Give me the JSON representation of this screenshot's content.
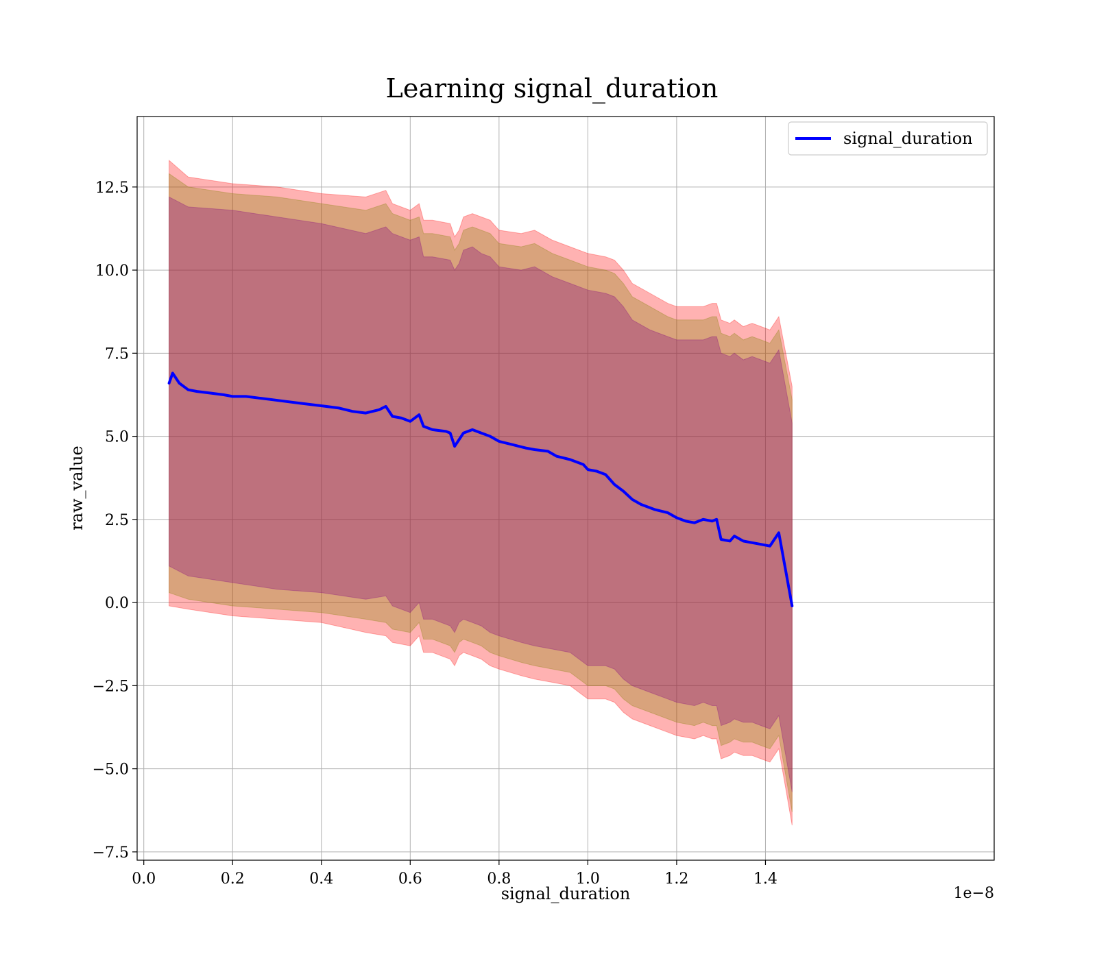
{
  "chart_data": {
    "type": "line",
    "title": "Learning signal_duration",
    "xlabel": "signal_duration",
    "ylabel": "raw_value",
    "x_offset_label": "1e−8",
    "xlim": [
      -0.015,
      1.915
    ],
    "ylim": [
      -7.75,
      14.62
    ],
    "x_ticks": [
      0.0,
      0.2,
      0.4,
      0.6,
      0.8,
      1.0,
      1.2,
      1.4
    ],
    "x_tick_labels": [
      "0.0",
      "0.2",
      "0.4",
      "0.6",
      "0.8",
      "1.0",
      "1.2",
      "1.4"
    ],
    "y_ticks": [
      -7.5,
      -5.0,
      -2.5,
      0.0,
      2.5,
      5.0,
      7.5,
      10.0,
      12.5
    ],
    "y_tick_labels": [
      "−7.5",
      "−5.0",
      "−2.5",
      "0.0",
      "2.5",
      "5.0",
      "7.5",
      "10.0",
      "12.5"
    ],
    "grid": true,
    "legend": {
      "position": "upper right",
      "entries": [
        "signal_duration"
      ]
    },
    "series": [
      {
        "name": "signal_duration",
        "color": "#0000ff",
        "x": [
          0.057,
          0.065,
          0.08,
          0.1,
          0.12,
          0.15,
          0.18,
          0.2,
          0.23,
          0.26,
          0.29,
          0.32,
          0.35,
          0.38,
          0.41,
          0.44,
          0.47,
          0.5,
          0.53,
          0.545,
          0.56,
          0.58,
          0.6,
          0.62,
          0.63,
          0.65,
          0.68,
          0.69,
          0.7,
          0.71,
          0.72,
          0.74,
          0.76,
          0.78,
          0.8,
          0.83,
          0.86,
          0.88,
          0.91,
          0.93,
          0.96,
          0.99,
          1.0,
          1.02,
          1.04,
          1.06,
          1.08,
          1.1,
          1.12,
          1.15,
          1.18,
          1.2,
          1.22,
          1.24,
          1.26,
          1.28,
          1.29,
          1.3,
          1.32,
          1.33,
          1.35,
          1.37,
          1.39,
          1.41,
          1.43,
          1.46
        ],
        "y": [
          6.6,
          6.9,
          6.6,
          6.4,
          6.35,
          6.3,
          6.25,
          6.2,
          6.2,
          6.15,
          6.1,
          6.05,
          6.0,
          5.95,
          5.9,
          5.85,
          5.75,
          5.7,
          5.8,
          5.9,
          5.6,
          5.55,
          5.45,
          5.65,
          5.3,
          5.2,
          5.15,
          5.1,
          4.7,
          4.9,
          5.1,
          5.2,
          5.1,
          5.0,
          4.85,
          4.75,
          4.65,
          4.6,
          4.55,
          4.4,
          4.3,
          4.15,
          4.0,
          3.95,
          3.85,
          3.55,
          3.35,
          3.1,
          2.95,
          2.8,
          2.7,
          2.55,
          2.45,
          2.4,
          2.5,
          2.45,
          2.5,
          1.9,
          1.85,
          2.0,
          1.85,
          1.8,
          1.75,
          1.7,
          2.1,
          -0.1
        ]
      }
    ],
    "bands": [
      {
        "color": "#ff0000",
        "opacity": 0.3,
        "x": [
          0.057,
          0.1,
          0.2,
          0.3,
          0.4,
          0.5,
          0.545,
          0.56,
          0.6,
          0.62,
          0.63,
          0.65,
          0.69,
          0.7,
          0.71,
          0.72,
          0.74,
          0.76,
          0.78,
          0.8,
          0.85,
          0.88,
          0.92,
          0.96,
          1.0,
          1.04,
          1.06,
          1.08,
          1.1,
          1.14,
          1.18,
          1.2,
          1.24,
          1.26,
          1.28,
          1.29,
          1.3,
          1.32,
          1.33,
          1.35,
          1.37,
          1.39,
          1.41,
          1.43,
          1.46
        ],
        "upper": [
          13.3,
          12.8,
          12.6,
          12.5,
          12.3,
          12.2,
          12.4,
          12.0,
          11.8,
          12.0,
          11.5,
          11.5,
          11.4,
          11.0,
          11.2,
          11.6,
          11.7,
          11.6,
          11.5,
          11.2,
          11.1,
          11.2,
          10.9,
          10.7,
          10.5,
          10.4,
          10.3,
          10.0,
          9.6,
          9.3,
          9.0,
          8.9,
          8.9,
          8.9,
          9.0,
          9.0,
          8.5,
          8.4,
          8.5,
          8.3,
          8.4,
          8.3,
          8.2,
          8.6,
          6.5
        ],
        "lower": [
          -0.1,
          -0.2,
          -0.4,
          -0.5,
          -0.6,
          -0.9,
          -1.0,
          -1.2,
          -1.3,
          -1.0,
          -1.5,
          -1.5,
          -1.7,
          -1.9,
          -1.6,
          -1.5,
          -1.6,
          -1.7,
          -1.9,
          -2.0,
          -2.2,
          -2.3,
          -2.4,
          -2.5,
          -2.9,
          -2.9,
          -3.0,
          -3.3,
          -3.5,
          -3.7,
          -3.9,
          -4.0,
          -4.1,
          -4.0,
          -4.1,
          -4.1,
          -4.7,
          -4.6,
          -4.5,
          -4.6,
          -4.6,
          -4.7,
          -4.8,
          -4.4,
          -6.7
        ]
      },
      {
        "color": "#808000",
        "opacity": 0.3,
        "x": [
          0.057,
          0.1,
          0.2,
          0.3,
          0.4,
          0.5,
          0.545,
          0.56,
          0.6,
          0.62,
          0.63,
          0.65,
          0.69,
          0.7,
          0.71,
          0.72,
          0.74,
          0.76,
          0.78,
          0.8,
          0.85,
          0.88,
          0.92,
          0.96,
          1.0,
          1.04,
          1.06,
          1.08,
          1.1,
          1.14,
          1.18,
          1.2,
          1.24,
          1.26,
          1.28,
          1.29,
          1.3,
          1.32,
          1.33,
          1.35,
          1.37,
          1.39,
          1.41,
          1.43,
          1.46
        ],
        "upper": [
          12.9,
          12.5,
          12.3,
          12.2,
          12.0,
          11.8,
          12.0,
          11.7,
          11.5,
          11.6,
          11.1,
          11.1,
          11.0,
          10.6,
          10.8,
          11.2,
          11.3,
          11.2,
          11.1,
          10.8,
          10.7,
          10.8,
          10.5,
          10.3,
          10.1,
          10.0,
          9.9,
          9.6,
          9.2,
          8.9,
          8.6,
          8.5,
          8.5,
          8.5,
          8.6,
          8.6,
          8.1,
          8.0,
          8.1,
          7.9,
          8.0,
          7.9,
          7.8,
          8.2,
          6.1
        ],
        "lower": [
          0.3,
          0.1,
          -0.1,
          -0.2,
          -0.3,
          -0.5,
          -0.6,
          -0.8,
          -0.9,
          -0.6,
          -1.1,
          -1.1,
          -1.3,
          -1.5,
          -1.2,
          -1.1,
          -1.2,
          -1.3,
          -1.5,
          -1.6,
          -1.8,
          -1.9,
          -2.0,
          -2.1,
          -2.5,
          -2.5,
          -2.6,
          -2.9,
          -3.1,
          -3.3,
          -3.5,
          -3.6,
          -3.7,
          -3.6,
          -3.7,
          -3.7,
          -4.3,
          -4.2,
          -4.1,
          -4.2,
          -4.2,
          -4.3,
          -4.4,
          -4.0,
          -6.3
        ]
      },
      {
        "color": "#800080",
        "opacity": 0.3,
        "x": [
          0.057,
          0.1,
          0.2,
          0.3,
          0.4,
          0.5,
          0.545,
          0.56,
          0.6,
          0.62,
          0.63,
          0.65,
          0.69,
          0.7,
          0.71,
          0.72,
          0.74,
          0.76,
          0.78,
          0.8,
          0.85,
          0.88,
          0.92,
          0.96,
          1.0,
          1.04,
          1.06,
          1.08,
          1.1,
          1.14,
          1.18,
          1.2,
          1.24,
          1.26,
          1.28,
          1.29,
          1.3,
          1.32,
          1.33,
          1.35,
          1.37,
          1.39,
          1.41,
          1.43,
          1.46
        ],
        "upper": [
          12.2,
          11.9,
          11.8,
          11.6,
          11.4,
          11.1,
          11.3,
          11.1,
          10.9,
          11.0,
          10.4,
          10.4,
          10.3,
          10.0,
          10.2,
          10.6,
          10.7,
          10.5,
          10.4,
          10.1,
          10.0,
          10.1,
          9.8,
          9.6,
          9.4,
          9.3,
          9.2,
          8.9,
          8.5,
          8.2,
          8.0,
          7.9,
          7.9,
          7.9,
          8.0,
          8.0,
          7.5,
          7.4,
          7.5,
          7.3,
          7.4,
          7.3,
          7.2,
          7.6,
          5.4
        ],
        "lower": [
          1.1,
          0.8,
          0.6,
          0.4,
          0.3,
          0.1,
          0.2,
          -0.1,
          -0.3,
          0.0,
          -0.5,
          -0.5,
          -0.7,
          -0.9,
          -0.6,
          -0.5,
          -0.6,
          -0.7,
          -0.9,
          -1.0,
          -1.2,
          -1.3,
          -1.4,
          -1.5,
          -1.9,
          -1.9,
          -2.0,
          -2.3,
          -2.5,
          -2.7,
          -2.9,
          -3.0,
          -3.1,
          -3.0,
          -3.1,
          -3.1,
          -3.7,
          -3.6,
          -3.5,
          -3.6,
          -3.6,
          -3.7,
          -3.8,
          -3.4,
          -5.7
        ]
      }
    ]
  }
}
